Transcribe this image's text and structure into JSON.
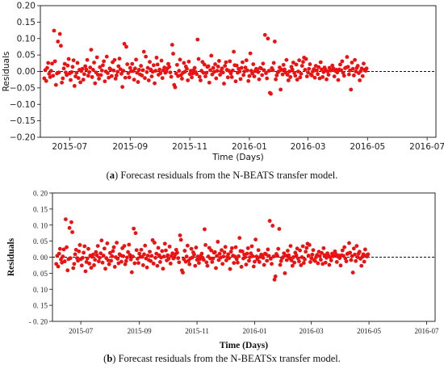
{
  "chart_data": [
    {
      "type": "scatter",
      "panel": "a",
      "xlabel": "Time (Days)",
      "ylabel": "Residuals",
      "ylim": [
        -0.2,
        0.2
      ],
      "xlim": [
        "2015-06-01",
        "2016-07-10"
      ],
      "y_ticks": [
        "0.20",
        "0.15",
        "0.10",
        "0.05",
        "0.00",
        "−0.05",
        "−0.10",
        "−0.15",
        "−0.20"
      ],
      "x_ticks": [
        "2015-07",
        "2015-09",
        "2015-11",
        "2016-01",
        "2016-03",
        "2016-05",
        "2016-07"
      ],
      "reference_line": 0.0,
      "marker_color": "#ee1111",
      "series": [
        {
          "x_start": "2015-06-05",
          "x_step_days": 1,
          "values": [
            -0.021,
            0.004,
            -0.029,
            0.011,
            0.026,
            -0.007,
            -0.017,
            0.002,
            0.024,
            -0.013,
            0.124,
            0.031,
            -0.041,
            -0.006,
            0.091,
            -0.003,
            0.114,
            0.078,
            -0.034,
            -0.021,
            0.009,
            0.023,
            -0.003,
            -0.011,
            0.018,
            0.038,
            -0.006,
            -0.026,
            -0.002,
            0.014,
            0.034,
            -0.044,
            -0.015,
            -0.004,
            0.026,
            -0.02,
            0.005,
            -0.033,
            0.001,
            0.008,
            -0.025,
            -0.008,
            0.016,
            0.006,
            0.035,
            -0.013,
            -0.002,
            0.012,
            0.066,
            -0.017,
            0.005,
            0.027,
            -0.036,
            -0.003,
            0.043,
            -0.01,
            -0.022,
            0.013,
            -0.011,
            0.003,
            0.019,
            0.031,
            -0.03,
            0.0,
            0.045,
            -0.005,
            -0.019,
            0.009,
            0.006,
            -0.014,
            0.028,
            0.003,
            0.035,
            -0.022,
            -0.012,
            -0.001,
            0.016,
            0.039,
            0.007,
            -0.007,
            -0.047,
            0.002,
            0.084,
            -0.019,
            0.075,
            0.022,
            -0.005,
            -0.018,
            0.011,
            0.001,
            0.023,
            0.001,
            -0.025,
            0.009,
            0.036,
            -0.004,
            -0.032,
            0.005,
            -0.009,
            0.017,
            -0.012,
            0.004,
            0.06,
            -0.02,
            0.045,
            -0.002,
            0.011,
            -0.027,
            0.029,
            0.006,
            -0.015,
            -0.001,
            0.019,
            -0.036,
            0.002,
            0.042,
            0.021,
            -0.01,
            0.006,
            -0.005,
            0.033,
            -0.02,
            0.004,
            0.012,
            -0.004,
            0.0,
            0.009,
            0.023,
            0.014,
            -0.003,
            -0.016,
            0.081,
            0.054,
            -0.041,
            -0.048,
            -0.006,
            0.02,
            -0.014,
            0.002,
            0.036,
            -0.011,
            -0.022,
            -0.004,
            0.026,
            -0.001,
            0.015,
            0.008,
            -0.027,
            0.03,
            -0.008,
            0.002,
            -0.018,
            -0.006,
            0.004,
            0.011,
            -0.002,
            -0.008,
            0.097,
            0.038,
            -0.016,
            -0.027,
            0.002,
            0.029,
            -0.004,
            0.021,
            -0.015,
            -0.004,
            0.014,
            0.016,
            -0.034,
            0.004,
            0.048,
            -0.009,
            0.011,
            -0.001,
            0.022,
            -0.021,
            0.002,
            0.015,
            0.032,
            -0.01,
            0.001,
            0.009,
            -0.003,
            -0.037,
            0.017,
            0.028,
            0.005,
            -0.018,
            0.002,
            0.031,
            -0.006,
            -0.017,
            0.003,
            0.06,
            0.019,
            -0.03,
            0.018,
            -0.004,
            0.008,
            0.0,
            -0.023,
            0.011,
            0.028,
            -0.011,
            0.0,
            0.012,
            0.034,
            0.003,
            -0.029,
            -0.014,
            0.055,
            0.002,
            -0.006,
            0.022,
            -0.015,
            0.001,
            0.008,
            0.004,
            -0.002,
            -0.024,
            0.011,
            0.009,
            -0.011,
            0.024,
            0.004,
            0.111,
            -0.005,
            -0.021,
            0.1,
            0.002,
            -0.065,
            -0.068,
            0.01,
            0.004,
            0.026,
            0.091,
            -0.024,
            -0.012,
            -0.003,
            0.0,
            0.012,
            -0.055,
            0.005,
            -0.009,
            0.02,
            0.006,
            -0.003,
            0.035,
            -0.01,
            -0.027,
            0.0,
            -0.017,
            0.014,
            0.006,
            0.027,
            -0.004,
            -0.013,
            0.021,
            -0.025,
            0.0,
            0.034,
            -0.018,
            -0.007,
            0.017,
            0.029,
            0.042,
            0.005,
            0.038,
            -0.015,
            -0.003,
            0.008,
            0.022,
            -0.009,
            -0.012,
            0.0,
            0.007,
            -0.019,
            0.017,
            0.003,
            -0.008,
            0.013,
            -0.021,
            0.028,
            0.006,
            -0.017,
            -0.002,
            0.012,
            0.005,
            -0.024,
            0.0,
            -0.01,
            0.011,
            0.003,
            0.004,
            0.018,
            0.009,
            -0.015,
            0.002,
            0.005,
            -0.003,
            -0.026,
            0.006,
            0.021,
            0.004,
            0.031,
            -0.004,
            -0.013,
            0.01,
            0.012,
            0.044,
            0.014,
            -0.009,
            0.003,
            -0.055,
            0.027,
            0.008,
            -0.012,
            0.035,
            0.0,
            0.011,
            0.017,
            -0.005,
            -0.027,
            0.001,
            0.009,
            -0.014,
            0.024,
            0.005,
            0.002,
            0.009
          ]
        }
      ]
    },
    {
      "type": "scatter",
      "panel": "b",
      "xlabel": "Time (Days)",
      "ylabel": "Residuals",
      "ylim": [
        -0.2,
        0.2
      ],
      "xlim": [
        "2015-06-01",
        "2016-07-10"
      ],
      "y_ticks": [
        "0. 20",
        "0. 15",
        "0. 10",
        "0. 05",
        "0. 00",
        "0. 05",
        "0. 10",
        "0. 15",
        "- 0. 20"
      ],
      "x_ticks": [
        "2015-07",
        "2015-09",
        "2015-11",
        "2016-01",
        "2016-03",
        "2016-05",
        "2016-07"
      ],
      "reference_line": 0.0,
      "marker_color": "#ee1111",
      "series": [
        {
          "x_start": "2015-06-05",
          "x_step_days": 1,
          "values": [
            -0.021,
            0.004,
            -0.029,
            0.011,
            0.026,
            -0.007,
            -0.017,
            0.002,
            0.024,
            -0.013,
            0.118,
            0.031,
            -0.041,
            -0.006,
            0.091,
            -0.003,
            0.109,
            0.078,
            -0.034,
            -0.021,
            0.009,
            0.023,
            -0.003,
            -0.011,
            0.018,
            0.038,
            -0.006,
            -0.026,
            -0.002,
            0.014,
            0.034,
            -0.044,
            -0.015,
            -0.004,
            0.026,
            -0.02,
            0.005,
            -0.033,
            0.001,
            0.008,
            -0.025,
            -0.008,
            0.016,
            0.006,
            0.035,
            -0.013,
            -0.002,
            0.012,
            0.052,
            -0.017,
            0.005,
            0.027,
            -0.036,
            -0.003,
            0.043,
            -0.01,
            -0.022,
            0.013,
            -0.011,
            0.003,
            0.019,
            0.031,
            -0.03,
            0.0,
            0.045,
            -0.005,
            -0.019,
            0.009,
            0.006,
            -0.014,
            0.028,
            0.003,
            0.035,
            -0.022,
            -0.012,
            -0.001,
            0.016,
            0.039,
            0.007,
            -0.007,
            -0.047,
            0.002,
            0.089,
            -0.019,
            0.075,
            0.022,
            -0.005,
            -0.018,
            0.011,
            0.001,
            0.023,
            0.001,
            -0.025,
            0.009,
            0.036,
            -0.004,
            -0.032,
            0.005,
            -0.009,
            0.017,
            -0.012,
            0.004,
            0.053,
            -0.02,
            0.045,
            -0.002,
            0.011,
            -0.027,
            0.029,
            0.006,
            -0.015,
            -0.001,
            0.019,
            -0.036,
            0.002,
            0.042,
            0.021,
            -0.01,
            0.006,
            -0.005,
            0.033,
            -0.02,
            0.004,
            0.012,
            -0.004,
            0.0,
            0.009,
            0.023,
            0.014,
            -0.003,
            -0.016,
            0.068,
            0.054,
            -0.041,
            -0.048,
            -0.006,
            0.02,
            -0.014,
            0.002,
            0.036,
            -0.011,
            -0.022,
            -0.004,
            0.026,
            -0.001,
            0.015,
            0.008,
            -0.027,
            0.03,
            -0.008,
            0.002,
            -0.018,
            -0.006,
            0.004,
            0.011,
            -0.002,
            -0.008,
            0.087,
            0.038,
            -0.016,
            -0.027,
            0.002,
            0.029,
            -0.004,
            0.021,
            -0.015,
            -0.004,
            0.014,
            0.016,
            -0.034,
            0.004,
            0.048,
            -0.009,
            0.011,
            -0.001,
            0.022,
            -0.021,
            0.002,
            0.015,
            0.032,
            -0.01,
            0.001,
            0.009,
            -0.003,
            -0.037,
            0.017,
            0.028,
            0.005,
            -0.018,
            0.002,
            0.031,
            -0.006,
            -0.017,
            0.003,
            0.06,
            0.019,
            -0.03,
            0.018,
            -0.004,
            0.008,
            0.0,
            -0.023,
            0.011,
            0.028,
            -0.011,
            0.0,
            0.012,
            0.034,
            0.003,
            -0.029,
            -0.014,
            0.055,
            0.002,
            -0.006,
            0.022,
            -0.015,
            0.001,
            0.008,
            0.004,
            -0.002,
            -0.024,
            0.011,
            0.009,
            -0.011,
            0.024,
            0.004,
            0.113,
            -0.005,
            -0.021,
            0.098,
            0.002,
            -0.07,
            -0.06,
            0.01,
            0.004,
            0.026,
            0.088,
            -0.024,
            -0.012,
            -0.003,
            0.0,
            0.012,
            -0.05,
            0.005,
            -0.009,
            0.02,
            0.006,
            -0.003,
            0.035,
            -0.01,
            -0.027,
            0.0,
            -0.017,
            0.014,
            0.006,
            0.027,
            -0.004,
            -0.013,
            0.021,
            -0.025,
            0.0,
            0.034,
            -0.018,
            -0.007,
            0.017,
            0.029,
            0.042,
            0.005,
            0.038,
            -0.015,
            -0.003,
            0.008,
            0.022,
            -0.009,
            -0.012,
            0.0,
            0.007,
            -0.019,
            0.017,
            0.003,
            -0.008,
            0.013,
            -0.021,
            0.028,
            0.006,
            -0.017,
            -0.002,
            0.012,
            0.005,
            -0.024,
            0.0,
            -0.01,
            0.011,
            0.003,
            0.004,
            0.018,
            0.009,
            -0.015,
            0.002,
            0.005,
            -0.003,
            -0.026,
            0.006,
            0.021,
            0.004,
            0.031,
            -0.004,
            -0.013,
            0.01,
            0.012,
            0.044,
            0.014,
            -0.009,
            0.003,
            -0.048,
            0.027,
            0.008,
            -0.012,
            0.035,
            0.0,
            0.011,
            0.017,
            -0.005,
            -0.027,
            0.001,
            0.009,
            -0.014,
            0.024,
            0.005,
            0.002,
            0.009
          ]
        }
      ]
    }
  ],
  "captions": {
    "a": {
      "label": "(a)",
      "letter": "a",
      "text": " Forecast residuals from the N-BEATS transfer model."
    },
    "b": {
      "label": "(b)",
      "letter": "b",
      "text": " Forecast residuals from the N-BEATSx transfer model."
    }
  }
}
